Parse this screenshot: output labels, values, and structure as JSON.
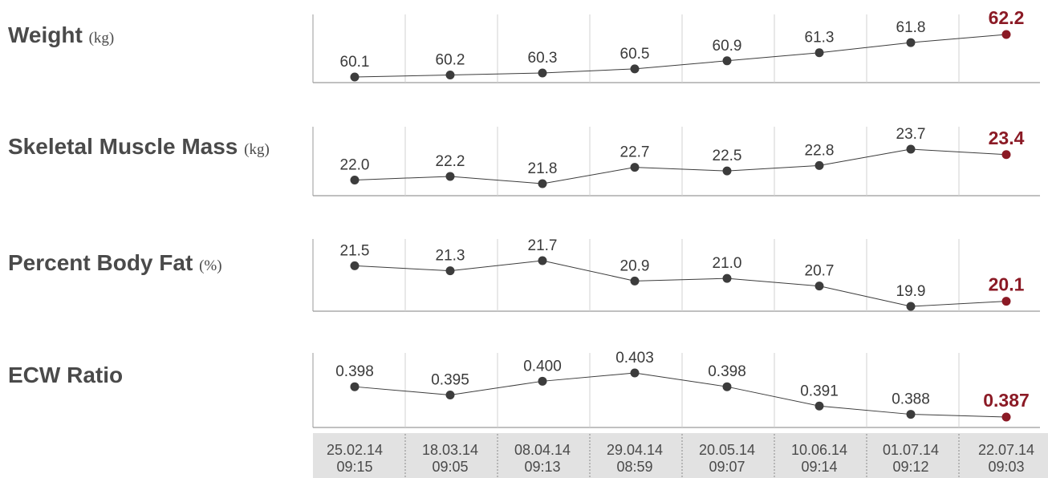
{
  "colors": {
    "accent": "#8b1a25",
    "point": "#3c3c3c",
    "text": "#4a4a4a",
    "grid": "#d0d0d0"
  },
  "dates": [
    {
      "date": "25.02.14",
      "time": "09:15"
    },
    {
      "date": "18.03.14",
      "time": "09:05"
    },
    {
      "date": "08.04.14",
      "time": "09:13"
    },
    {
      "date": "29.04.14",
      "time": "08:59"
    },
    {
      "date": "20.05.14",
      "time": "09:07"
    },
    {
      "date": "10.06.14",
      "time": "09:14"
    },
    {
      "date": "01.07.14",
      "time": "09:12"
    },
    {
      "date": "22.07.14",
      "time": "09:03"
    }
  ],
  "chart_data": [
    {
      "type": "line",
      "title": "Weight",
      "unit": "(kg)",
      "values": [
        60.1,
        60.2,
        60.3,
        60.5,
        60.9,
        61.3,
        61.8,
        62.2
      ],
      "labels": [
        "60.1",
        "60.2",
        "60.3",
        "60.5",
        "60.9",
        "61.3",
        "61.8",
        "62.2"
      ]
    },
    {
      "type": "line",
      "title": "Skeletal Muscle Mass",
      "unit": "(kg)",
      "values": [
        22.0,
        22.2,
        21.8,
        22.7,
        22.5,
        22.8,
        23.7,
        23.4
      ],
      "labels": [
        "22.0",
        "22.2",
        "21.8",
        "22.7",
        "22.5",
        "22.8",
        "23.7",
        "23.4"
      ]
    },
    {
      "type": "line",
      "title": "Percent Body Fat",
      "unit": "(%)",
      "values": [
        21.5,
        21.3,
        21.7,
        20.9,
        21.0,
        20.7,
        19.9,
        20.1
      ],
      "labels": [
        "21.5",
        "21.3",
        "21.7",
        "20.9",
        "21.0",
        "20.7",
        "19.9",
        "20.1"
      ]
    },
    {
      "type": "line",
      "title": "ECW Ratio",
      "unit": "",
      "values": [
        0.398,
        0.395,
        0.4,
        0.403,
        0.398,
        0.391,
        0.388,
        0.387
      ],
      "labels": [
        "0.398",
        "0.395",
        "0.400",
        "0.403",
        "0.398",
        "0.391",
        "0.388",
        "0.387"
      ]
    }
  ]
}
